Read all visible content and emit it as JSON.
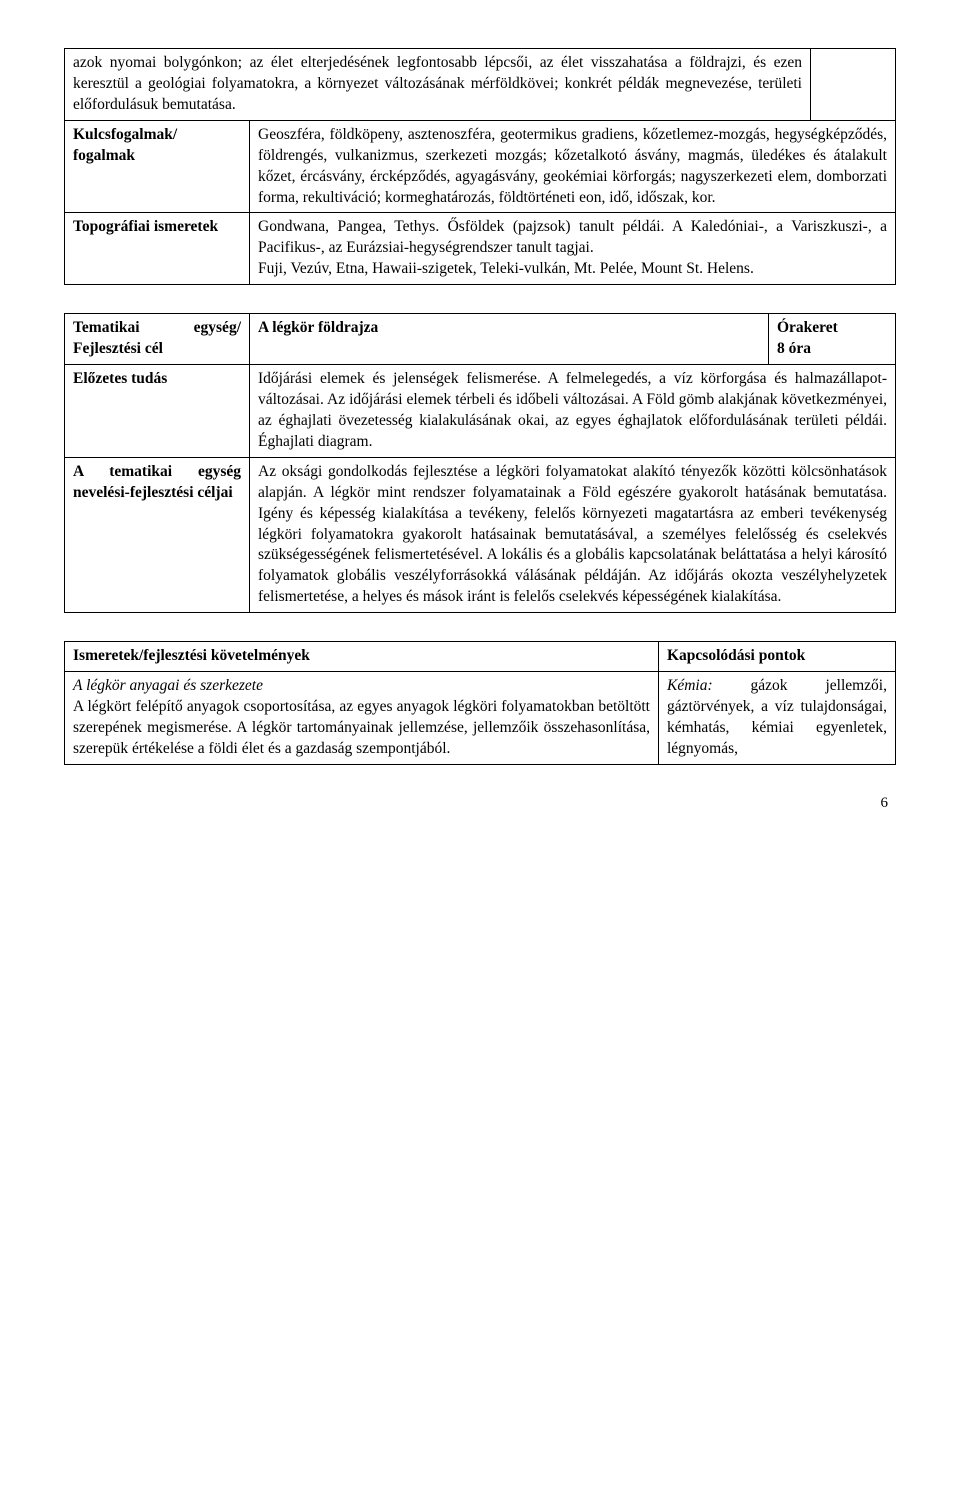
{
  "table1": {
    "row1_left": "azok nyomai bolygónkon; az élet elterjedésének legfontosabb lépcsői, az élet visszahatása a földrajzi, és ezen keresztül a geológiai folyamatokra, a környezet változásának mérföldkövei; konkrét példák megnevezése, területi előfordulásuk bemutatása.",
    "kulcs_label": "Kulcsfogalmak/ fogalmak",
    "kulcs_text": "Geoszféra, földköpeny, asztenoszféra, geotermikus gradiens, kőzetlemez-mozgás, hegységképződés, földrengés, vulkanizmus, szerkezeti mozgás; kőzetalkotó ásvány, magmás, üledékes és átalakult kőzet, ércásvány, ércképződés, agyagásvány, geokémiai körforgás; nagyszerkezeti elem, domborzati forma, rekultiváció; kormeghatározás, földtörténeti eon, idő, időszak, kor.",
    "topo_label": "Topográfiai ismeretek",
    "topo_text": "Gondwana, Pangea, Tethys. Ősföldek (pajzsok) tanult példái. A Kaledóniai-, a Variszkuszi-, a Pacifikus-, az Eurázsiai-hegységrendszer tanult tagjai.\nFuji, Vezúv, Etna, Hawaii-szigetek, Teleki-vulkán, Mt. Pelée, Mount St. Helens."
  },
  "table2": {
    "theme_label": "Tematikai egység/ Fejlesztési cél",
    "theme_title": "A légkör földrajza",
    "hours_label": "Órakeret",
    "hours_value": "8 óra",
    "prev_label": "Előzetes tudás",
    "prev_text": "Időjárási elemek és jelenségek felismerése. A felmelegedés, a víz körforgása és halmazállapot-változásai. Az időjárási elemek térbeli és időbeli változásai. A Föld gömb alakjának következményei, az éghajlati övezetesség kialakulásának okai, az egyes éghajlatok előfordulásának területi példái. Éghajlati diagram.",
    "goals_label": "A tematikai egység nevelési-fejlesztési céljai",
    "goals_text": "Az oksági gondolkodás fejlesztése a légköri folyamatokat alakító tényezők közötti kölcsönhatások alapján. A légkör mint rendszer folyamatainak a Föld egészére gyakorolt hatásának bemutatása. Igény és képesség kialakítása a tevékeny, felelős környezeti magatartásra az emberi tevékenység légköri folyamatokra gyakorolt hatásainak bemutatásával, a személyes felelősség és cselekvés szükségességének felismertetésével. A lokális és a globális kapcsolatának beláttatása a helyi károsító folyamatok globális veszélyforrásokká válásának példáján. Az időjárás okozta veszélyhelyzetek felismertetése, a helyes és mások iránt is felelős cselekvés képességének kialakítása."
  },
  "table3": {
    "req_header": "Ismeretek/fejlesztési követelmények",
    "kapcs_header": "Kapcsolódási pontok",
    "req_italic": "A légkör anyagai és szerkezete",
    "req_body": "A légkört felépítő anyagok csoportosítása, az egyes anyagok légköri folyamatokban betöltött szerepének megismerése. A légkör tartományainak jellemzése, jellemzőik összehasonlítása, szerepük értékelése a földi élet és a gazdaság szempontjából.",
    "kapcs_italic": "Kémia:",
    "kapcs_rest": " gázok jellemzői, gáztörvények, a víz tulajdonságai, kémhatás, kémiai egyenletek, légnyomás,"
  },
  "page_number": "6"
}
